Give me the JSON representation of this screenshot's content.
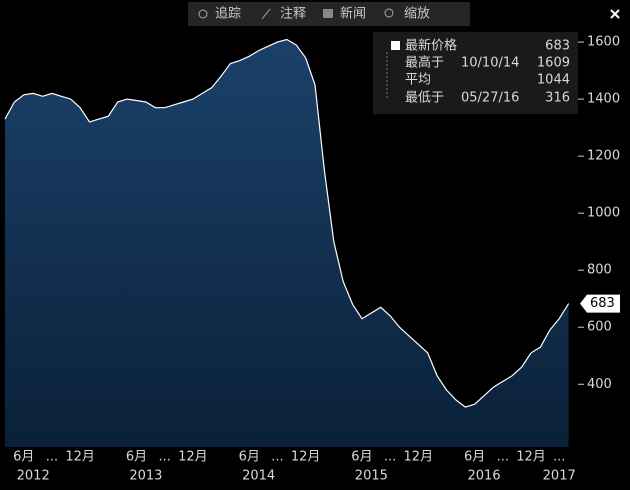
{
  "chart_data": {
    "type": "area",
    "toolbar": [
      "追踪",
      "注释",
      "新闻",
      "缩放"
    ],
    "legend": {
      "rows": [
        {
          "label": "最新价格",
          "value": 683
        },
        {
          "label": "最高于",
          "date": "10/10/14",
          "value": 1609
        },
        {
          "label": "平均",
          "value": 1044
        },
        {
          "label": "最低于",
          "date": "05/27/16",
          "value": 316
        }
      ]
    },
    "x": [
      "2012-04",
      "2012-05",
      "2012-06",
      "2012-07",
      "2012-08",
      "2012-09",
      "2012-10",
      "2012-11",
      "2012-12",
      "2013-01",
      "2013-02",
      "2013-03",
      "2013-04",
      "2013-05",
      "2013-06",
      "2013-07",
      "2013-08",
      "2013-09",
      "2013-10",
      "2013-11",
      "2013-12",
      "2014-01",
      "2014-02",
      "2014-03",
      "2014-04",
      "2014-05",
      "2014-06",
      "2014-07",
      "2014-08",
      "2014-09",
      "2014-10",
      "2014-11",
      "2014-12",
      "2015-01",
      "2015-02",
      "2015-03",
      "2015-04",
      "2015-05",
      "2015-06",
      "2015-07",
      "2015-08",
      "2015-09",
      "2015-10",
      "2015-11",
      "2015-12",
      "2016-01",
      "2016-02",
      "2016-03",
      "2016-04",
      "2016-05",
      "2016-06",
      "2016-07",
      "2016-08",
      "2016-09",
      "2016-10",
      "2016-11",
      "2016-12",
      "2017-01",
      "2017-02",
      "2017-03",
      "2017-04"
    ],
    "series": [
      {
        "color": "#ffffff",
        "values": [
          1330,
          1390,
          1415,
          1420,
          1410,
          1420,
          1410,
          1400,
          1370,
          1320,
          1330,
          1340,
          1390,
          1400,
          1395,
          1390,
          1370,
          1370,
          1380,
          1390,
          1400,
          1420,
          1440,
          1480,
          1525,
          1535,
          1550,
          1570,
          1585,
          1600,
          1609,
          1590,
          1545,
          1450,
          1150,
          900,
          760,
          680,
          630,
          650,
          670,
          640,
          600,
          570,
          540,
          510,
          430,
          380,
          345,
          320,
          330,
          360,
          390,
          410,
          430,
          460,
          510,
          530,
          590,
          630,
          683
        ]
      }
    ],
    "xlim": [
      "2012-04",
      "2017-05"
    ],
    "xticks": [
      {
        "value": "2012-06",
        "label": "6月"
      },
      {
        "value": "2012-09",
        "label": "..."
      },
      {
        "value": "2012-12",
        "label": "12月"
      },
      {
        "value": "2013-06",
        "label": "6月"
      },
      {
        "value": "2013-09",
        "label": "..."
      },
      {
        "value": "2013-12",
        "label": "12月"
      },
      {
        "value": "2014-06",
        "label": "6月"
      },
      {
        "value": "2014-09",
        "label": "..."
      },
      {
        "value": "2014-12",
        "label": "12月"
      },
      {
        "value": "2015-06",
        "label": "6月"
      },
      {
        "value": "2015-09",
        "label": "..."
      },
      {
        "value": "2015-12",
        "label": "12月"
      },
      {
        "value": "2016-06",
        "label": "6月"
      },
      {
        "value": "2016-09",
        "label": "..."
      },
      {
        "value": "2016-12",
        "label": "12月"
      },
      {
        "value": "2017-03",
        "label": "..."
      }
    ],
    "year_labels": [
      {
        "value": "2012-07",
        "label": "2012"
      },
      {
        "value": "2013-07",
        "label": "2013"
      },
      {
        "value": "2014-07",
        "label": "2014"
      },
      {
        "value": "2015-07",
        "label": "2015"
      },
      {
        "value": "2016-07",
        "label": "2016"
      },
      {
        "value": "2017-03",
        "label": "2017"
      }
    ],
    "ylim": [
      180,
      1730
    ],
    "yticks": [
      {
        "value": 400,
        "label": "400"
      },
      {
        "value": 600,
        "label": "600"
      },
      {
        "value": 800,
        "label": "800"
      },
      {
        "value": 1000,
        "label": "1000"
      },
      {
        "value": 1200,
        "label": "1200"
      },
      {
        "value": 1400,
        "label": "1400"
      },
      {
        "value": 1600,
        "label": "1600"
      }
    ]
  }
}
